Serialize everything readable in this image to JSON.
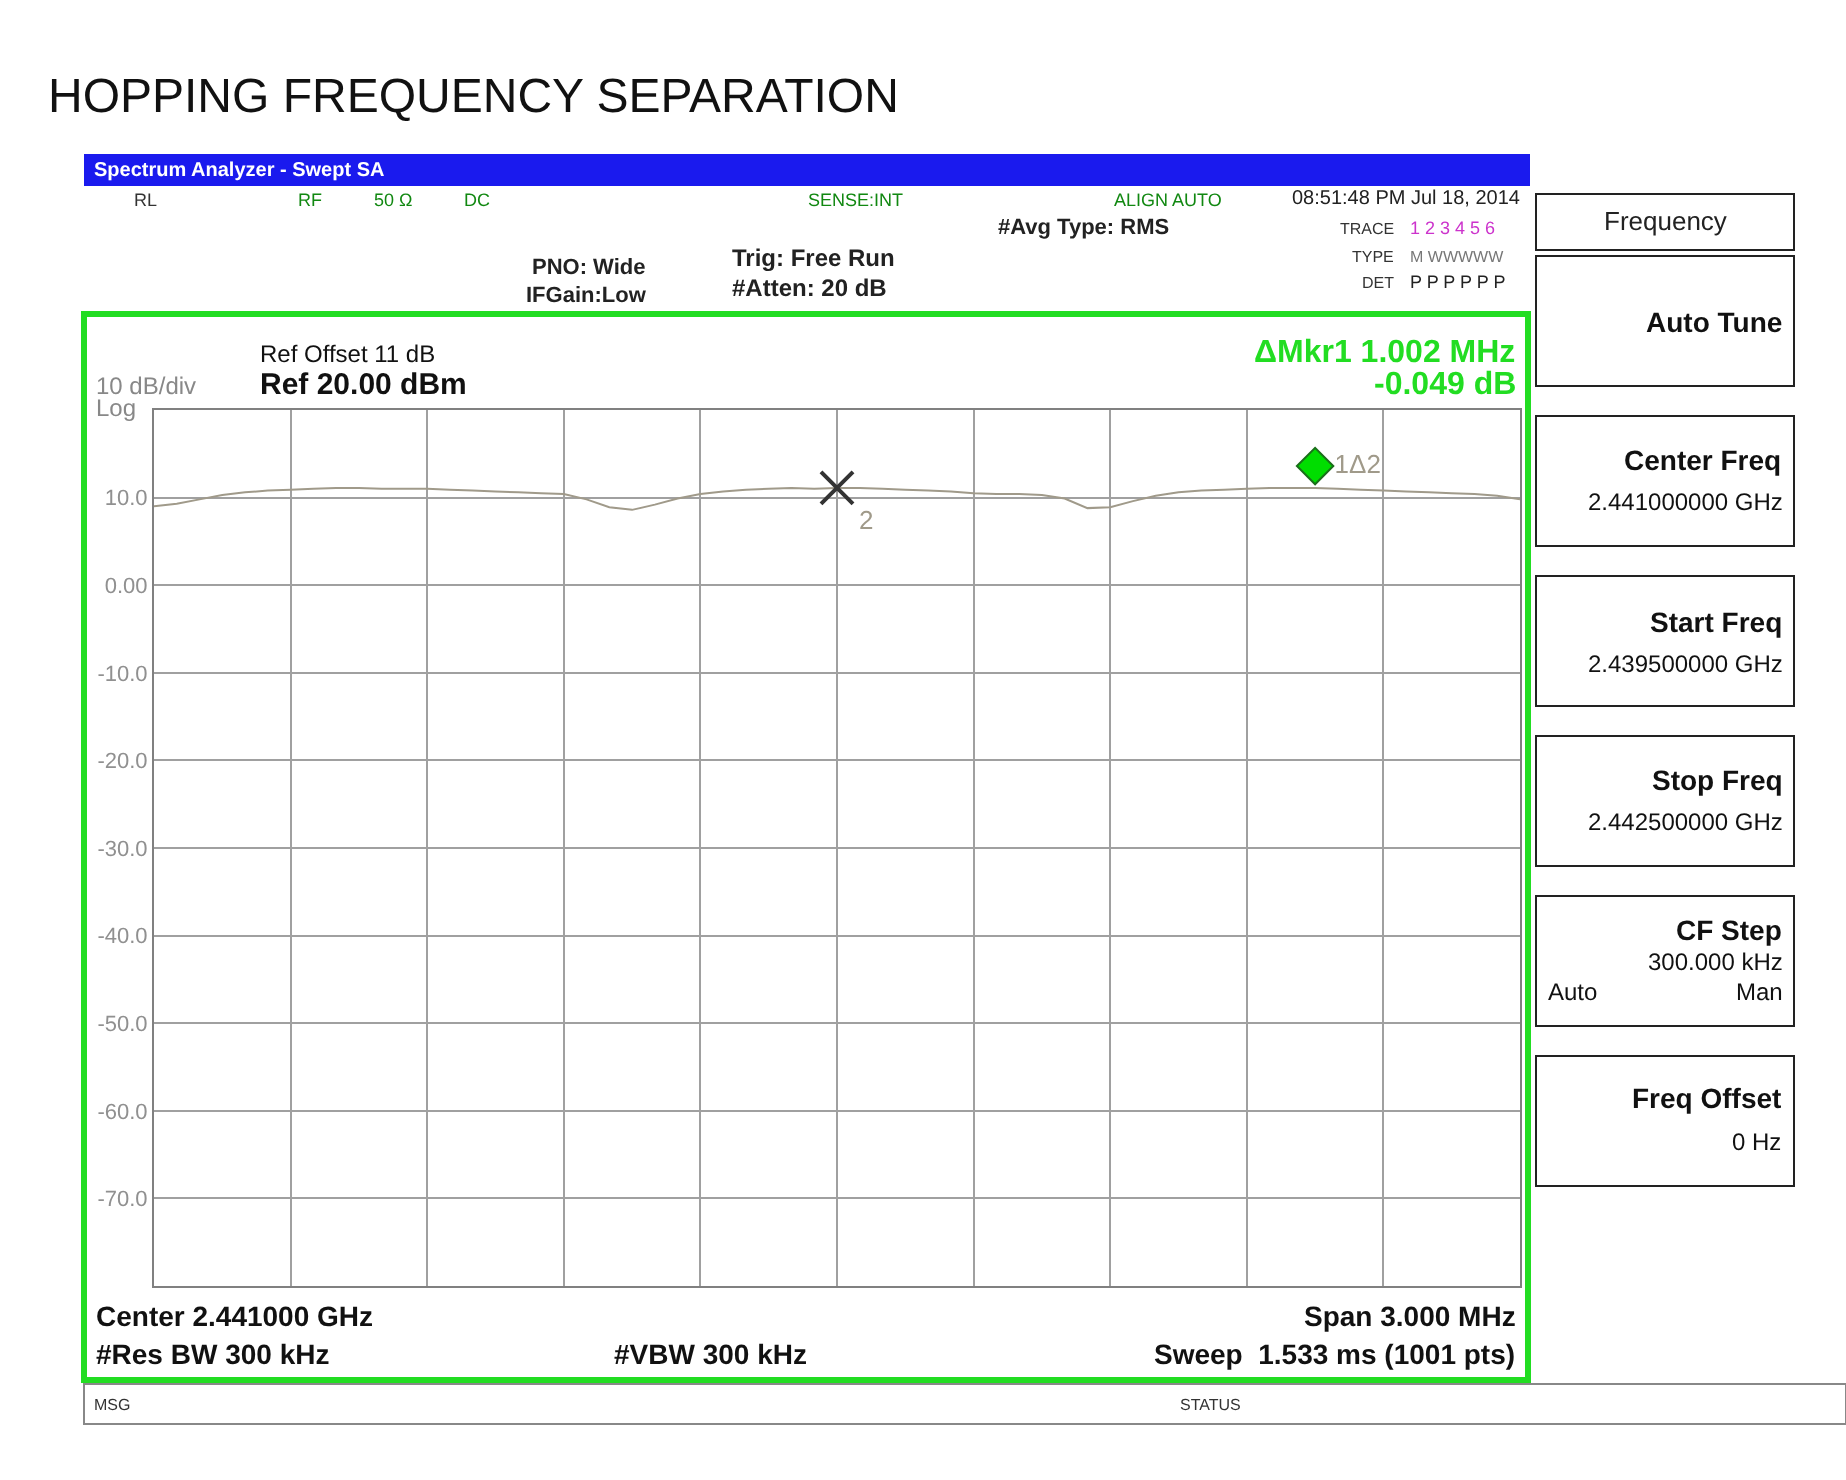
{
  "chart_data": {
    "type": "line",
    "title": "HOPPING FREQUENCY SEPARATION",
    "categories": [
      null,
      null,
      null,
      null,
      null,
      null,
      null,
      null,
      null,
      null,
      null,
      null,
      null,
      null,
      null,
      null,
      null,
      null,
      null,
      null,
      null,
      null,
      null,
      null,
      null,
      null,
      null,
      null,
      null,
      null,
      null,
      null,
      null,
      null,
      null,
      null,
      null,
      null,
      null,
      null,
      null,
      null,
      null,
      null,
      null,
      null,
      null,
      null,
      null,
      null,
      null,
      null,
      null,
      null,
      null,
      null,
      null,
      null,
      null,
      null,
      null
    ],
    "series": [
      {
        "color": "#a09a8a",
        "values": [
          9.0,
          9.3,
          9.8,
          10.3,
          10.6,
          10.8,
          10.9,
          11.0,
          11.1,
          11.1,
          11.0,
          11.0,
          11.0,
          10.9,
          10.8,
          10.7,
          10.6,
          10.5,
          10.4,
          9.8,
          8.9,
          8.6,
          9.2,
          9.9,
          10.4,
          10.7,
          10.9,
          11.0,
          11.1,
          11.0,
          11.1,
          11.1,
          11.0,
          10.9,
          10.8,
          10.7,
          10.5,
          10.4,
          10.4,
          10.3,
          9.9,
          8.8,
          8.9,
          9.6,
          10.2,
          10.6,
          10.8,
          10.9,
          11.0,
          11.1,
          11.1,
          11.1,
          11.0,
          10.9,
          10.8,
          10.7,
          10.6,
          10.5,
          10.4,
          10.2,
          9.8
        ]
      },
      {
        "type": "scatter",
        "name": "1Δ2",
        "color": "#00dd00",
        "marker": "diamond",
        "values": [
          null,
          null,
          null,
          null,
          null,
          null,
          null,
          null,
          null,
          null,
          null,
          null,
          null,
          null,
          null,
          null,
          null,
          null,
          null,
          null,
          null,
          null,
          null,
          null,
          null,
          null,
          null,
          null,
          null,
          null,
          null,
          null,
          null,
          null,
          null,
          null,
          null,
          null,
          null,
          null,
          null,
          null,
          null,
          null,
          null,
          null,
          null,
          null,
          null,
          null,
          null,
          13.6,
          null,
          null,
          null,
          null,
          null,
          null,
          null,
          null,
          null
        ]
      },
      {
        "type": "scatter",
        "name": "2",
        "color": "#333333",
        "marker": "cross",
        "values": [
          null,
          null,
          null,
          null,
          null,
          null,
          null,
          null,
          null,
          null,
          null,
          null,
          null,
          null,
          null,
          null,
          null,
          null,
          null,
          null,
          null,
          null,
          null,
          null,
          null,
          null,
          null,
          null,
          null,
          null,
          11.1,
          null,
          null,
          null,
          null,
          null,
          null,
          null,
          null,
          null,
          null,
          null,
          null,
          null,
          null,
          null,
          null,
          null,
          null,
          null,
          null,
          null,
          null,
          null,
          null,
          null,
          null,
          null,
          null,
          null,
          null
        ]
      }
    ],
    "ylim": [
      -80,
      20
    ],
    "yticks": [
      {
        "value": 20,
        "label": null
      },
      {
        "value": 10,
        "label": "10.0"
      },
      {
        "value": 0,
        "label": "0.00"
      },
      {
        "value": -10,
        "label": "-10.0"
      },
      {
        "value": -20,
        "label": "-20.0"
      },
      {
        "value": -30,
        "label": "-30.0"
      },
      {
        "value": -40,
        "label": "-40.0"
      },
      {
        "value": -50,
        "label": "-50.0"
      },
      {
        "value": -60,
        "label": "-60.0"
      },
      {
        "value": -70,
        "label": "-70.0"
      },
      {
        "value": -80,
        "label": null
      }
    ],
    "grid": true,
    "ylabel": "10 dB/div",
    "annotations": [
      "Spectrum Analyzer - Swept SA",
      "RL",
      "RF",
      "50 Ω",
      "DC",
      "SENSE:INT",
      "ALIGN AUTO",
      "08:51:48 PM Jul 18, 2014",
      "#Avg Type: RMS",
      "TRACE",
      "1 2 3 4 5 6",
      "TYPE",
      "M WWWWW",
      "DET",
      "P P P P P P",
      "PNO: Wide",
      "IFGain:Low",
      "Trig: Free Run",
      "#Atten: 20 dB",
      "Ref Offset 11 dB",
      "Ref 20.00 dBm",
      "ΔMkr1 1.002 MHz",
      "-0.049 dB",
      "Log",
      "Center 2.441000 GHz",
      "Span 3.000 MHz",
      "#Res BW 300 kHz",
      "#VBW 300 kHz",
      "Sweep  1.533 ms (1001 pts)",
      "MSG",
      "STATUS",
      "Frequency",
      "Auto Tune",
      "Center Freq",
      "2.441000000 GHz",
      "Start Freq",
      "2.439500000 GHz",
      "Stop Freq",
      "2.442500000 GHz",
      "CF Step",
      "300.000 kHz",
      "Auto",
      "Man",
      "Freq Offset",
      "0 Hz"
    ]
  }
}
